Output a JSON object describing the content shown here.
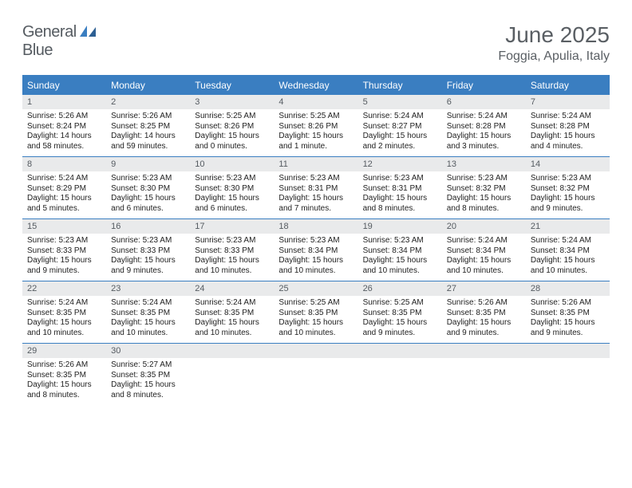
{
  "brand": {
    "part1": "General",
    "part2": "Blue"
  },
  "title": "June 2025",
  "location": "Foggia, Apulia, Italy",
  "colors": {
    "accent": "#3a7ec1",
    "dayHeaderBg": "#e9eaeb",
    "text": "#5a5f64",
    "bodyText": "#222222"
  },
  "weekdays": [
    "Sunday",
    "Monday",
    "Tuesday",
    "Wednesday",
    "Thursday",
    "Friday",
    "Saturday"
  ],
  "weeks": [
    [
      {
        "n": "1",
        "sr": "5:26 AM",
        "ss": "8:24 PM",
        "dl": "14 hours and 58 minutes."
      },
      {
        "n": "2",
        "sr": "5:26 AM",
        "ss": "8:25 PM",
        "dl": "14 hours and 59 minutes."
      },
      {
        "n": "3",
        "sr": "5:25 AM",
        "ss": "8:26 PM",
        "dl": "15 hours and 0 minutes."
      },
      {
        "n": "4",
        "sr": "5:25 AM",
        "ss": "8:26 PM",
        "dl": "15 hours and 1 minute."
      },
      {
        "n": "5",
        "sr": "5:24 AM",
        "ss": "8:27 PM",
        "dl": "15 hours and 2 minutes."
      },
      {
        "n": "6",
        "sr": "5:24 AM",
        "ss": "8:28 PM",
        "dl": "15 hours and 3 minutes."
      },
      {
        "n": "7",
        "sr": "5:24 AM",
        "ss": "8:28 PM",
        "dl": "15 hours and 4 minutes."
      }
    ],
    [
      {
        "n": "8",
        "sr": "5:24 AM",
        "ss": "8:29 PM",
        "dl": "15 hours and 5 minutes."
      },
      {
        "n": "9",
        "sr": "5:23 AM",
        "ss": "8:30 PM",
        "dl": "15 hours and 6 minutes."
      },
      {
        "n": "10",
        "sr": "5:23 AM",
        "ss": "8:30 PM",
        "dl": "15 hours and 6 minutes."
      },
      {
        "n": "11",
        "sr": "5:23 AM",
        "ss": "8:31 PM",
        "dl": "15 hours and 7 minutes."
      },
      {
        "n": "12",
        "sr": "5:23 AM",
        "ss": "8:31 PM",
        "dl": "15 hours and 8 minutes."
      },
      {
        "n": "13",
        "sr": "5:23 AM",
        "ss": "8:32 PM",
        "dl": "15 hours and 8 minutes."
      },
      {
        "n": "14",
        "sr": "5:23 AM",
        "ss": "8:32 PM",
        "dl": "15 hours and 9 minutes."
      }
    ],
    [
      {
        "n": "15",
        "sr": "5:23 AM",
        "ss": "8:33 PM",
        "dl": "15 hours and 9 minutes."
      },
      {
        "n": "16",
        "sr": "5:23 AM",
        "ss": "8:33 PM",
        "dl": "15 hours and 9 minutes."
      },
      {
        "n": "17",
        "sr": "5:23 AM",
        "ss": "8:33 PM",
        "dl": "15 hours and 10 minutes."
      },
      {
        "n": "18",
        "sr": "5:23 AM",
        "ss": "8:34 PM",
        "dl": "15 hours and 10 minutes."
      },
      {
        "n": "19",
        "sr": "5:23 AM",
        "ss": "8:34 PM",
        "dl": "15 hours and 10 minutes."
      },
      {
        "n": "20",
        "sr": "5:24 AM",
        "ss": "8:34 PM",
        "dl": "15 hours and 10 minutes."
      },
      {
        "n": "21",
        "sr": "5:24 AM",
        "ss": "8:34 PM",
        "dl": "15 hours and 10 minutes."
      }
    ],
    [
      {
        "n": "22",
        "sr": "5:24 AM",
        "ss": "8:35 PM",
        "dl": "15 hours and 10 minutes."
      },
      {
        "n": "23",
        "sr": "5:24 AM",
        "ss": "8:35 PM",
        "dl": "15 hours and 10 minutes."
      },
      {
        "n": "24",
        "sr": "5:24 AM",
        "ss": "8:35 PM",
        "dl": "15 hours and 10 minutes."
      },
      {
        "n": "25",
        "sr": "5:25 AM",
        "ss": "8:35 PM",
        "dl": "15 hours and 10 minutes."
      },
      {
        "n": "26",
        "sr": "5:25 AM",
        "ss": "8:35 PM",
        "dl": "15 hours and 9 minutes."
      },
      {
        "n": "27",
        "sr": "5:26 AM",
        "ss": "8:35 PM",
        "dl": "15 hours and 9 minutes."
      },
      {
        "n": "28",
        "sr": "5:26 AM",
        "ss": "8:35 PM",
        "dl": "15 hours and 9 minutes."
      }
    ],
    [
      {
        "n": "29",
        "sr": "5:26 AM",
        "ss": "8:35 PM",
        "dl": "15 hours and 8 minutes."
      },
      {
        "n": "30",
        "sr": "5:27 AM",
        "ss": "8:35 PM",
        "dl": "15 hours and 8 minutes."
      },
      null,
      null,
      null,
      null,
      null
    ]
  ],
  "labels": {
    "sunrise": "Sunrise:",
    "sunset": "Sunset:",
    "daylight": "Daylight:"
  }
}
